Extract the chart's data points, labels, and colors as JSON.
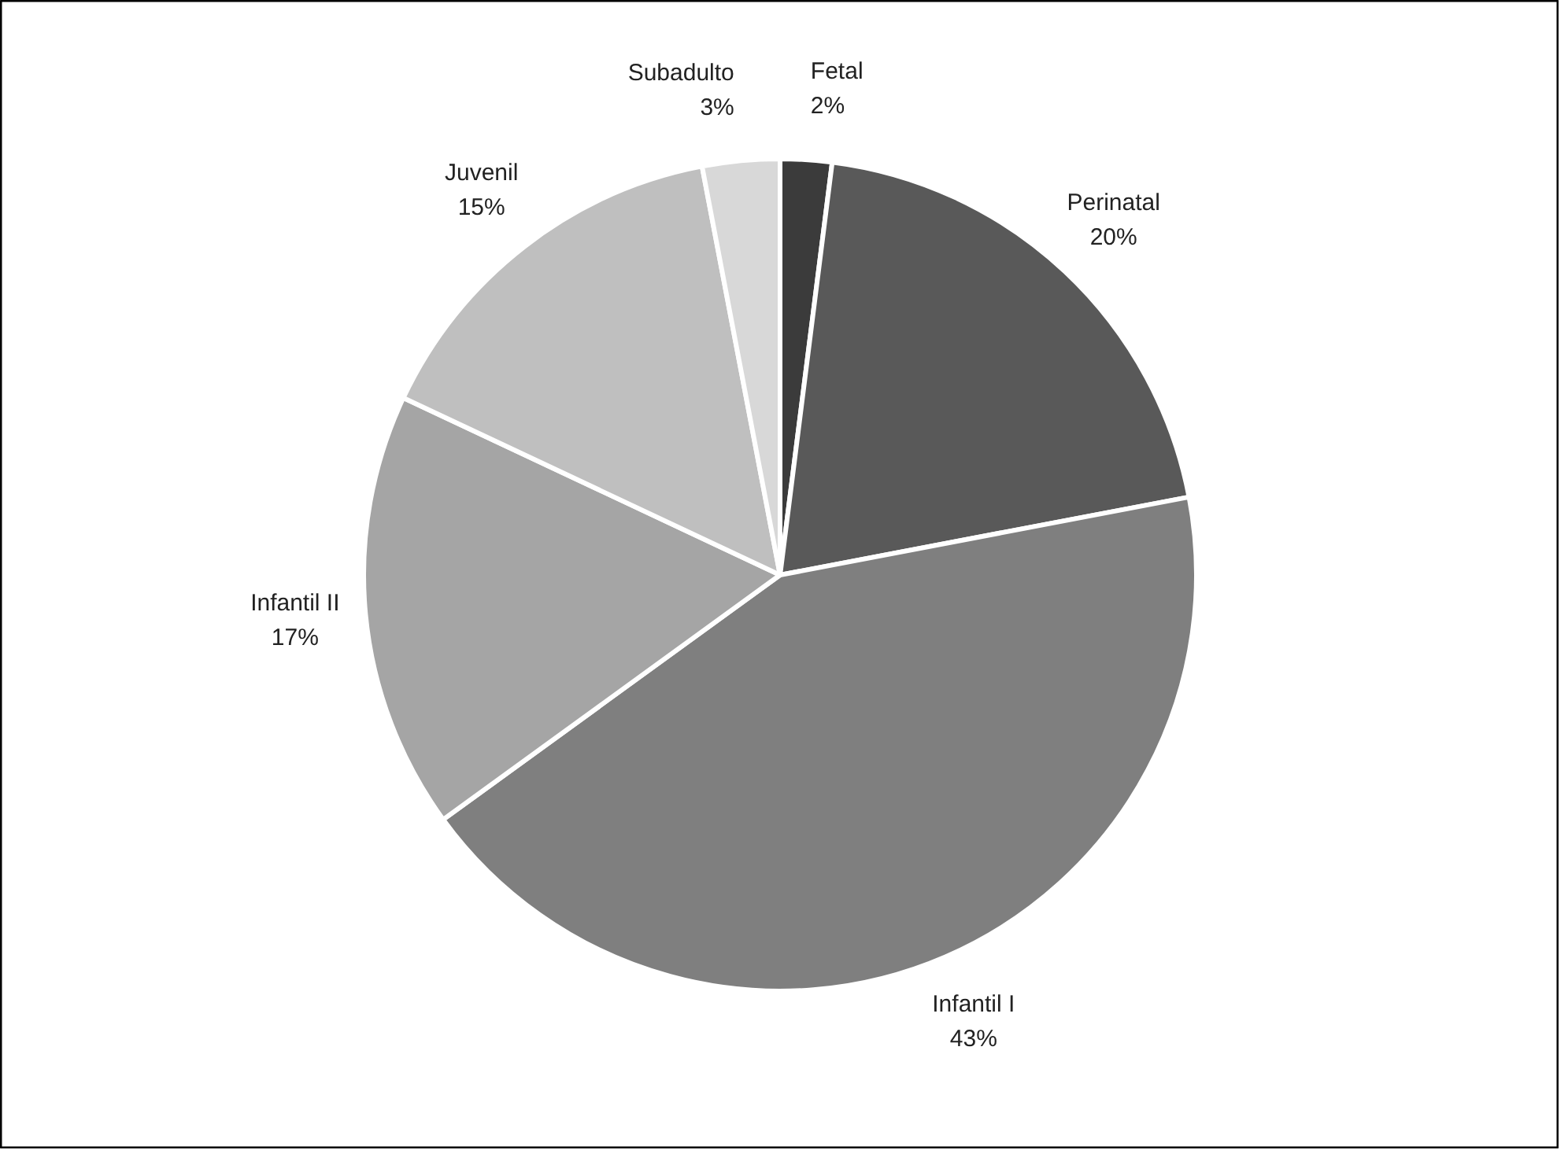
{
  "chart_data": {
    "type": "pie",
    "categories": [
      "Fetal",
      "Perinatal",
      "Infantil I",
      "Infantil II",
      "Juvenil",
      "Subadulto"
    ],
    "values": [
      2,
      20,
      43,
      17,
      15,
      3
    ],
    "value_labels": [
      "2%",
      "20%",
      "43%",
      "17%",
      "15%",
      "3%"
    ],
    "colors": [
      "#3b3b3b",
      "#595959",
      "#7f7f7f",
      "#a5a5a5",
      "#bfbfbf",
      "#d8d8d8"
    ]
  }
}
